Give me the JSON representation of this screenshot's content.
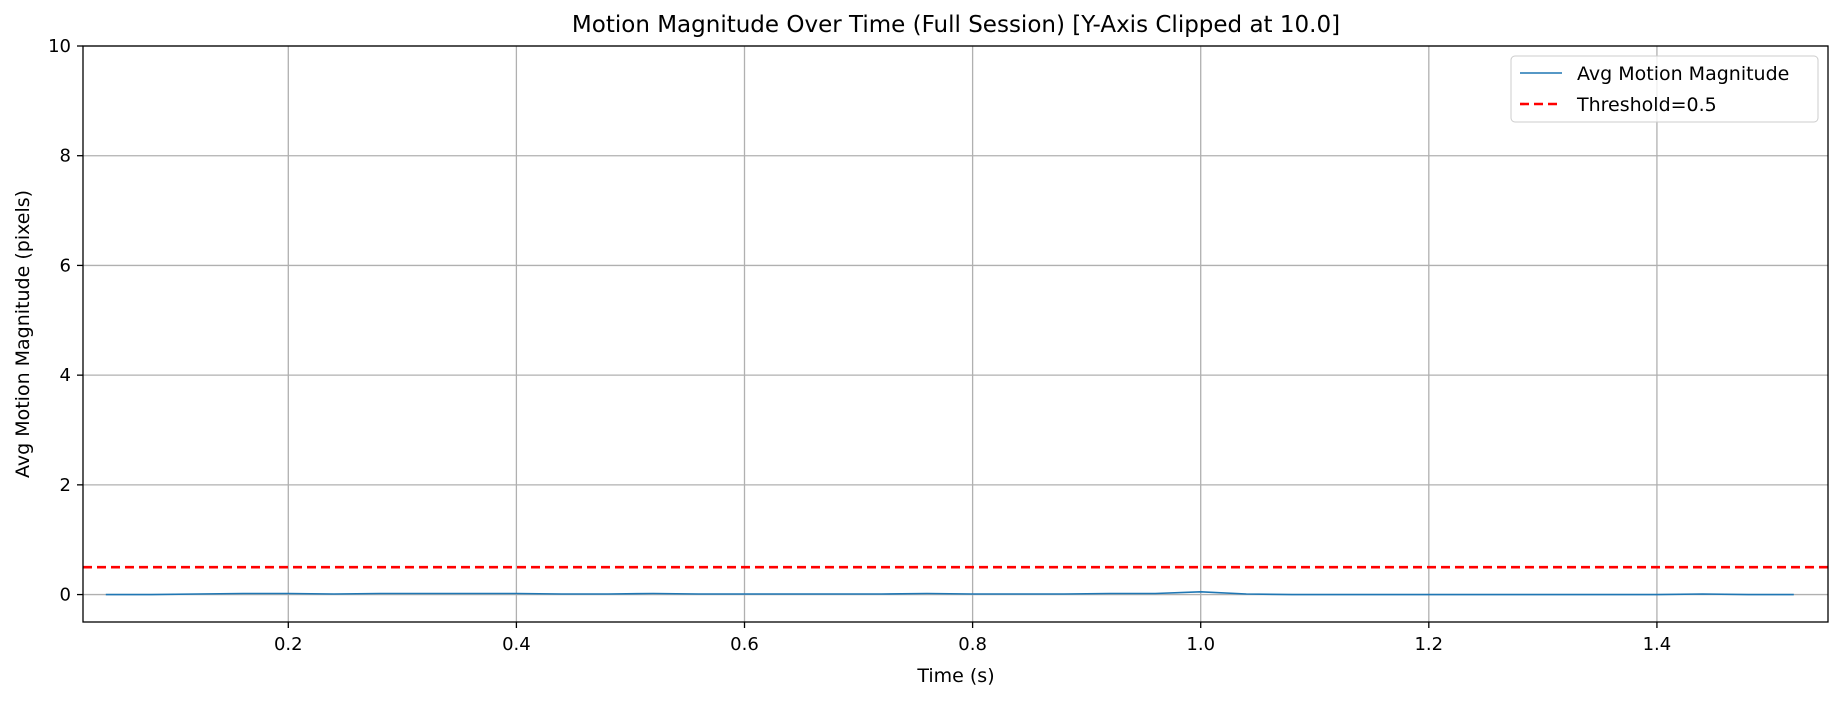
{
  "chart_data": {
    "type": "line",
    "title": "Motion Magnitude Over Time (Full Session) [Y-Axis Clipped at 10.0]",
    "xlabel": "Time (s)",
    "ylabel": "Avg Motion Magnitude (pixels)",
    "xlim": [
      0.02,
      1.55
    ],
    "ylim": [
      -0.5,
      10
    ],
    "xticks": [
      0.2,
      0.4,
      0.6,
      0.8,
      1.0,
      1.2,
      1.4
    ],
    "xtick_labels": [
      "0.2",
      "0.4",
      "0.6",
      "0.8",
      "1.0",
      "1.2",
      "1.4"
    ],
    "yticks": [
      0,
      2,
      4,
      6,
      8,
      10
    ],
    "ytick_labels": [
      "0",
      "2",
      "4",
      "6",
      "8",
      "10"
    ],
    "grid": true,
    "legend_position": "top-right",
    "series": [
      {
        "name": "Avg Motion Magnitude",
        "color": "#1f77b4",
        "style": "solid",
        "x": [
          0.04,
          0.08,
          0.12,
          0.16,
          0.2,
          0.24,
          0.28,
          0.32,
          0.36,
          0.4,
          0.44,
          0.48,
          0.52,
          0.56,
          0.6,
          0.64,
          0.68,
          0.72,
          0.76,
          0.8,
          0.84,
          0.88,
          0.92,
          0.96,
          1.0,
          1.04,
          1.08,
          1.12,
          1.16,
          1.2,
          1.24,
          1.28,
          1.32,
          1.36,
          1.4,
          1.44,
          1.48,
          1.52
        ],
        "y": [
          0.0,
          0.0,
          0.01,
          0.02,
          0.02,
          0.01,
          0.02,
          0.02,
          0.02,
          0.02,
          0.01,
          0.01,
          0.02,
          0.01,
          0.01,
          0.01,
          0.01,
          0.01,
          0.02,
          0.01,
          0.01,
          0.01,
          0.02,
          0.02,
          0.05,
          0.01,
          0.0,
          0.0,
          0.0,
          0.0,
          0.0,
          0.0,
          0.0,
          0.0,
          0.0,
          0.01,
          0.0,
          0.0
        ]
      },
      {
        "name": "Threshold=0.5",
        "color": "#ff0000",
        "style": "dashed",
        "constant": 0.5
      }
    ]
  }
}
